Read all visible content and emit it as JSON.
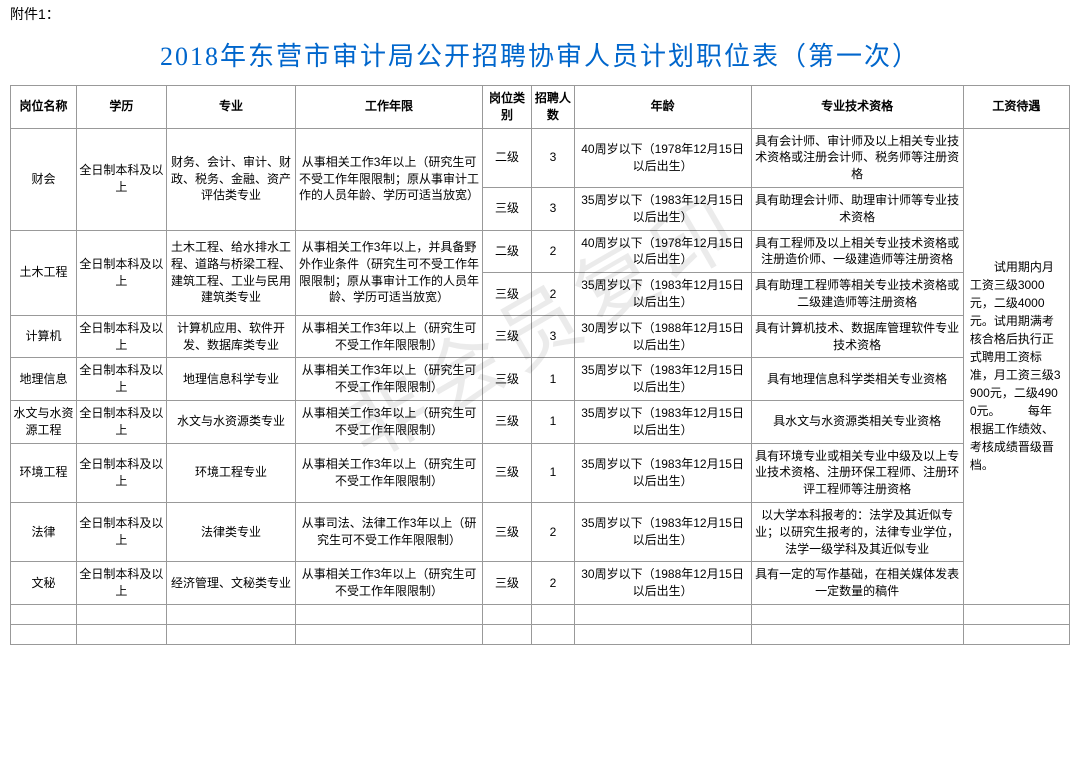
{
  "watermark": "非会员复印",
  "attachment": "附件1：",
  "title": "2018年东营市审计局公开招聘协审人员计划职位表（第一次）",
  "headers": {
    "position": "岗位名称",
    "education": "学历",
    "major": "专业",
    "experience": "工作年限",
    "level": "岗位类别",
    "count": "招聘人数",
    "age": "年龄",
    "qualification": "专业技术资格",
    "salary": "工资待遇"
  },
  "rows": {
    "caikuai_pos": "财会",
    "caikuai_edu": "全日制本科及以上",
    "caikuai_major": "财务、会计、审计、财政、税务、金融、资产评估类专业",
    "caikuai_exp": "从事相关工作3年以上（研究生可不受工作年限限制；原从事审计工作的人员年龄、学历可适当放宽）",
    "caikuai_l1": "二级",
    "caikuai_c1": "3",
    "caikuai_a1": "40周岁以下（1978年12月15日以后出生）",
    "caikuai_q1": "具有会计师、审计师及以上相关专业技术资格或注册会计师、税务师等注册资格",
    "caikuai_l2": "三级",
    "caikuai_c2": "3",
    "caikuai_a2": "35周岁以下（1983年12月15日以后出生）",
    "caikuai_q2": "具有助理会计师、助理审计师等专业技术资格",
    "tumu_pos": "土木工程",
    "tumu_edu": "全日制本科及以上",
    "tumu_major": "土木工程、给水排水工程、道路与桥梁工程、建筑工程、工业与民用建筑类专业",
    "tumu_exp": "从事相关工作3年以上，并具备野外作业条件（研究生可不受工作年限限制；原从事审计工作的人员年龄、学历可适当放宽）",
    "tumu_l1": "二级",
    "tumu_c1": "2",
    "tumu_a1": "40周岁以下（1978年12月15日以后出生）",
    "tumu_q1": "具有工程师及以上相关专业技术资格或注册造价师、一级建造师等注册资格",
    "tumu_l2": "三级",
    "tumu_c2": "2",
    "tumu_a2": "35周岁以下（1983年12月15日以后出生）",
    "tumu_q2": "具有助理工程师等相关专业技术资格或二级建造师等注册资格",
    "jisuanji_pos": "计算机",
    "jisuanji_edu": "全日制本科及以上",
    "jisuanji_major": "计算机应用、软件开发、数据库类专业",
    "jisuanji_exp": "从事相关工作3年以上（研究生可不受工作年限限制）",
    "jisuanji_lvl": "三级",
    "jisuanji_cnt": "3",
    "jisuanji_age": "30周岁以下（1988年12月15日以后出生）",
    "jisuanji_qual": "具有计算机技术、数据库管理软件专业技术资格",
    "dili_pos": "地理信息",
    "dili_edu": "全日制本科及以上",
    "dili_major": "地理信息科学专业",
    "dili_exp": "从事相关工作3年以上（研究生可不受工作年限限制）",
    "dili_lvl": "三级",
    "dili_cnt": "1",
    "dili_age": "35周岁以下（1983年12月15日以后出生）",
    "dili_qual": "具有地理信息科学类相关专业资格",
    "shuiwen_pos": "水文与水资源工程",
    "shuiwen_edu": "全日制本科及以上",
    "shuiwen_major": "水文与水资源类专业",
    "shuiwen_exp": "从事相关工作3年以上（研究生可不受工作年限限制）",
    "shuiwen_lvl": "三级",
    "shuiwen_cnt": "1",
    "shuiwen_age": "35周岁以下（1983年12月15日以后出生）",
    "shuiwen_qual": "具水文与水资源类相关专业资格",
    "huanjing_pos": "环境工程",
    "huanjing_edu": "全日制本科及以上",
    "huanjing_major": "环境工程专业",
    "huanjing_exp": "从事相关工作3年以上（研究生可不受工作年限限制）",
    "huanjing_lvl": "三级",
    "huanjing_cnt": "1",
    "huanjing_age": "35周岁以下（1983年12月15日以后出生）",
    "huanjing_qual": "具有环境专业或相关专业中级及以上专业技术资格、注册环保工程师、注册环评工程师等注册资格",
    "falv_pos": "法律",
    "falv_edu": "全日制本科及以上",
    "falv_major": "法律类专业",
    "falv_exp": "从事司法、法律工作3年以上（研究生可不受工作年限限制）",
    "falv_lvl": "三级",
    "falv_cnt": "2",
    "falv_age": "35周岁以下（1983年12月15日以后出生）",
    "falv_qual": "以大学本科报考的：法学及其近似专业；以研究生报考的，法律专业学位，法学一级学科及其近似专业",
    "wenmi_pos": "文秘",
    "wenmi_edu": "全日制本科及以上",
    "wenmi_major": "经济管理、文秘类专业",
    "wenmi_exp": "从事相关工作3年以上（研究生可不受工作年限限制）",
    "wenmi_lvl": "三级",
    "wenmi_cnt": "2",
    "wenmi_age": "30周岁以下（1988年12月15日以后出生）",
    "wenmi_qual": "具有一定的写作基础，在相关媒体发表一定数量的稿件"
  },
  "salary": "试用期内月工资三级3000元，二级4000元。试用期满考核合格后执行正式聘用工资标准，月工资三级3900元，二级4900元。\n　　每年根据工作绩效、考核成绩晋级晋档。"
}
